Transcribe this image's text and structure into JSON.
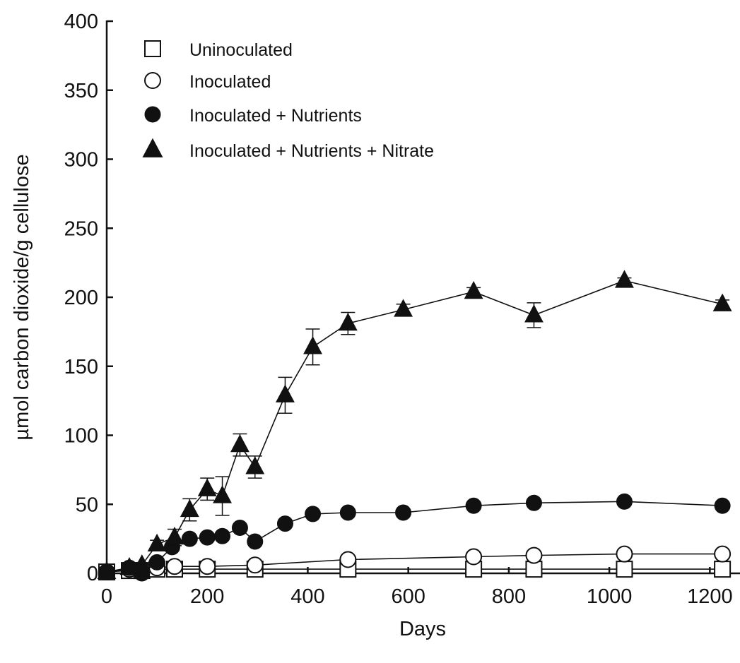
{
  "chart_data": {
    "type": "line",
    "xlabel": "Days",
    "ylabel": "µmol carbon dioxide/g cellulose",
    "xlim": [
      0,
      1260
    ],
    "ylim": [
      0,
      400
    ],
    "x_ticks": [
      0,
      200,
      400,
      600,
      800,
      1000,
      1200
    ],
    "y_ticks": [
      0,
      50,
      100,
      150,
      200,
      250,
      300,
      350,
      400
    ],
    "grid": false,
    "legend_position": "top-left",
    "series": [
      {
        "name": "Uninoculated",
        "marker": "square-open",
        "points": [
          {
            "x": 0,
            "y": 1
          },
          {
            "x": 45,
            "y": 2
          },
          {
            "x": 70,
            "y": 2
          },
          {
            "x": 100,
            "y": 3
          },
          {
            "x": 135,
            "y": 3
          },
          {
            "x": 200,
            "y": 3
          },
          {
            "x": 295,
            "y": 3
          },
          {
            "x": 480,
            "y": 3
          },
          {
            "x": 730,
            "y": 3
          },
          {
            "x": 850,
            "y": 3
          },
          {
            "x": 1030,
            "y": 3
          },
          {
            "x": 1225,
            "y": 3
          }
        ]
      },
      {
        "name": "Inoculated",
        "marker": "circle-open",
        "points": [
          {
            "x": 0,
            "y": 1
          },
          {
            "x": 45,
            "y": 3
          },
          {
            "x": 70,
            "y": 3
          },
          {
            "x": 100,
            "y": 4
          },
          {
            "x": 135,
            "y": 5
          },
          {
            "x": 200,
            "y": 5
          },
          {
            "x": 295,
            "y": 6
          },
          {
            "x": 480,
            "y": 10
          },
          {
            "x": 730,
            "y": 12
          },
          {
            "x": 850,
            "y": 13
          },
          {
            "x": 1030,
            "y": 14
          },
          {
            "x": 1225,
            "y": 14
          }
        ]
      },
      {
        "name": "Inoculated + Nutrients",
        "marker": "circle-filled",
        "points": [
          {
            "x": 0,
            "y": 1
          },
          {
            "x": 45,
            "y": 4
          },
          {
            "x": 70,
            "y": 0
          },
          {
            "x": 100,
            "y": 8
          },
          {
            "x": 130,
            "y": 19
          },
          {
            "x": 165,
            "y": 25
          },
          {
            "x": 200,
            "y": 26
          },
          {
            "x": 230,
            "y": 27
          },
          {
            "x": 265,
            "y": 33
          },
          {
            "x": 295,
            "y": 23
          },
          {
            "x": 355,
            "y": 36
          },
          {
            "x": 410,
            "y": 43
          },
          {
            "x": 480,
            "y": 44
          },
          {
            "x": 590,
            "y": 44
          },
          {
            "x": 730,
            "y": 49
          },
          {
            "x": 850,
            "y": 51
          },
          {
            "x": 1030,
            "y": 52
          },
          {
            "x": 1225,
            "y": 49
          }
        ]
      },
      {
        "name": "Inoculated + Nutrients + Nitrate",
        "marker": "triangle-filled",
        "points": [
          {
            "x": 0,
            "y": 1,
            "err": 0
          },
          {
            "x": 45,
            "y": 4,
            "err": 0
          },
          {
            "x": 70,
            "y": 6,
            "err": 0
          },
          {
            "x": 100,
            "y": 21,
            "err": 3
          },
          {
            "x": 135,
            "y": 26,
            "err": 6
          },
          {
            "x": 165,
            "y": 46,
            "err": 8
          },
          {
            "x": 200,
            "y": 61,
            "err": 8
          },
          {
            "x": 230,
            "y": 56,
            "err": 14
          },
          {
            "x": 265,
            "y": 93,
            "err": 8
          },
          {
            "x": 295,
            "y": 77,
            "err": 8
          },
          {
            "x": 355,
            "y": 129,
            "err": 13
          },
          {
            "x": 410,
            "y": 164,
            "err": 13
          },
          {
            "x": 480,
            "y": 181,
            "err": 8
          },
          {
            "x": 590,
            "y": 191,
            "err": 4
          },
          {
            "x": 730,
            "y": 204,
            "err": 3
          },
          {
            "x": 850,
            "y": 187,
            "err": 9
          },
          {
            "x": 1030,
            "y": 212,
            "err": 2
          },
          {
            "x": 1225,
            "y": 195,
            "err": 3
          }
        ]
      }
    ]
  }
}
